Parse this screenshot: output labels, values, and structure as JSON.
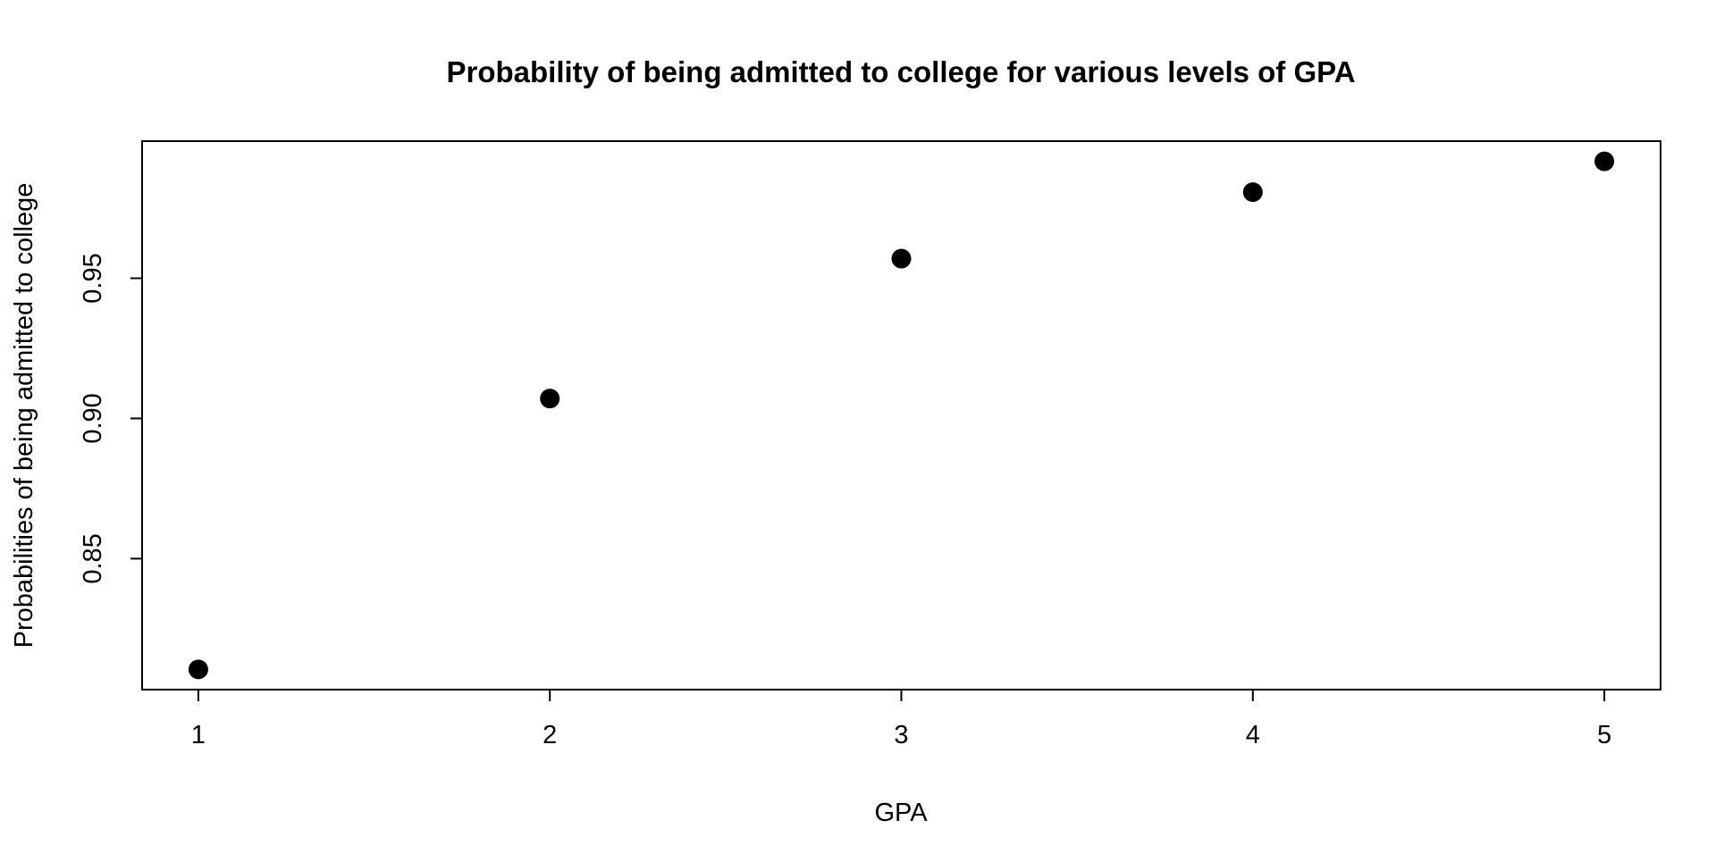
{
  "chart_data": {
    "type": "scatter",
    "title": "Probability of being admitted to college for various levels of GPA",
    "xlabel": "GPA",
    "ylabel": "Probabilities of being admitted to college",
    "x": [
      1,
      2,
      3,
      4,
      5
    ],
    "y": [
      0.8105,
      0.9071,
      0.957,
      0.9807,
      0.9917
    ],
    "xlim": [
      0.84,
      5.16
    ],
    "ylim": [
      0.8033,
      0.9989
    ],
    "xticks": [
      1,
      2,
      3,
      4,
      5
    ],
    "xtick_labels": [
      "1",
      "2",
      "3",
      "4",
      "5"
    ],
    "yticks": [
      0.85,
      0.9,
      0.95
    ],
    "ytick_labels": [
      "0.85",
      "0.90",
      "0.95"
    ],
    "grid": false,
    "point_color": "#000000",
    "frame": "box"
  }
}
